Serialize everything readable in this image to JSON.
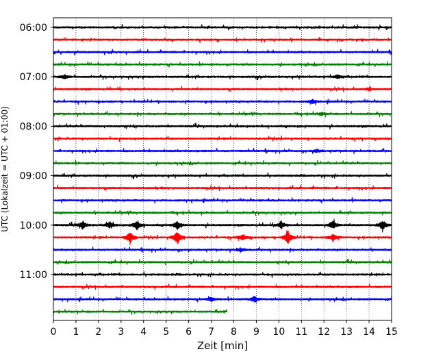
{
  "chart_data": {
    "type": "line",
    "title": "",
    "xlabel": "Zeit  [min]",
    "ylabel": "UTC (Lokalzeit = UTC + 01:00)",
    "xlim": [
      0,
      15
    ],
    "x_ticks": [
      0,
      1,
      2,
      3,
      4,
      5,
      6,
      7,
      8,
      9,
      10,
      11,
      12,
      13,
      14,
      15
    ],
    "x_tick_labels": [
      "0",
      "1",
      "2",
      "3",
      "4",
      "5",
      "6",
      "7",
      "8",
      "9",
      "10",
      "11",
      "12",
      "13",
      "14",
      "15"
    ],
    "y_tick_labels": [
      "06:00",
      "07:00",
      "08:00",
      "09:00",
      "10:00",
      "11:00"
    ],
    "grid": "vertical dotted",
    "trace_colors": [
      "#000000",
      "#ff0000",
      "#0000ff",
      "#008000"
    ],
    "row_minutes": 15,
    "first_row_start": "06:00",
    "series": [
      {
        "start": "06:00",
        "color": "#000000",
        "events": []
      },
      {
        "start": "06:15",
        "color": "#ff0000",
        "events": []
      },
      {
        "start": "06:30",
        "color": "#0000ff",
        "events": []
      },
      {
        "start": "06:45",
        "color": "#008000",
        "events": []
      },
      {
        "start": "07:00",
        "color": "#000000",
        "events": [
          [
            0.5,
            3
          ],
          [
            12.6,
            3
          ]
        ]
      },
      {
        "start": "07:15",
        "color": "#ff0000",
        "events": [
          [
            14.0,
            2
          ]
        ]
      },
      {
        "start": "07:30",
        "color": "#0000ff",
        "events": [
          [
            11.5,
            3
          ]
        ]
      },
      {
        "start": "07:45",
        "color": "#008000",
        "events": [
          [
            11.9,
            2
          ]
        ]
      },
      {
        "start": "08:00",
        "color": "#000000",
        "events": []
      },
      {
        "start": "08:15",
        "color": "#ff0000",
        "events": []
      },
      {
        "start": "08:30",
        "color": "#0000ff",
        "events": [
          [
            11.7,
            2
          ]
        ]
      },
      {
        "start": "08:45",
        "color": "#008000",
        "events": []
      },
      {
        "start": "09:00",
        "color": "#000000",
        "events": []
      },
      {
        "start": "09:15",
        "color": "#ff0000",
        "events": []
      },
      {
        "start": "09:30",
        "color": "#0000ff",
        "events": []
      },
      {
        "start": "09:45",
        "color": "#008000",
        "events": []
      },
      {
        "start": "10:00",
        "color": "#000000",
        "events": [
          [
            1.3,
            6
          ],
          [
            2.5,
            5
          ],
          [
            3.7,
            7
          ],
          [
            5.5,
            6
          ],
          [
            10.1,
            6
          ],
          [
            12.4,
            7
          ],
          [
            14.6,
            8
          ]
        ]
      },
      {
        "start": "10:15",
        "color": "#ff0000",
        "events": [
          [
            3.4,
            10
          ],
          [
            5.5,
            11
          ],
          [
            8.4,
            5
          ],
          [
            10.4,
            11
          ],
          [
            12.4,
            6
          ]
        ]
      },
      {
        "start": "10:30",
        "color": "#0000ff",
        "events": [
          [
            8.3,
            3
          ]
        ]
      },
      {
        "start": "10:45",
        "color": "#008000",
        "events": []
      },
      {
        "start": "11:00",
        "color": "#000000",
        "events": []
      },
      {
        "start": "11:15",
        "color": "#ff0000",
        "events": []
      },
      {
        "start": "11:30",
        "color": "#0000ff",
        "events": [
          [
            7.0,
            3
          ],
          [
            8.9,
            5
          ]
        ]
      },
      {
        "start": "11:45",
        "color": "#008000",
        "events": [],
        "end_minute": 7.7
      }
    ]
  }
}
